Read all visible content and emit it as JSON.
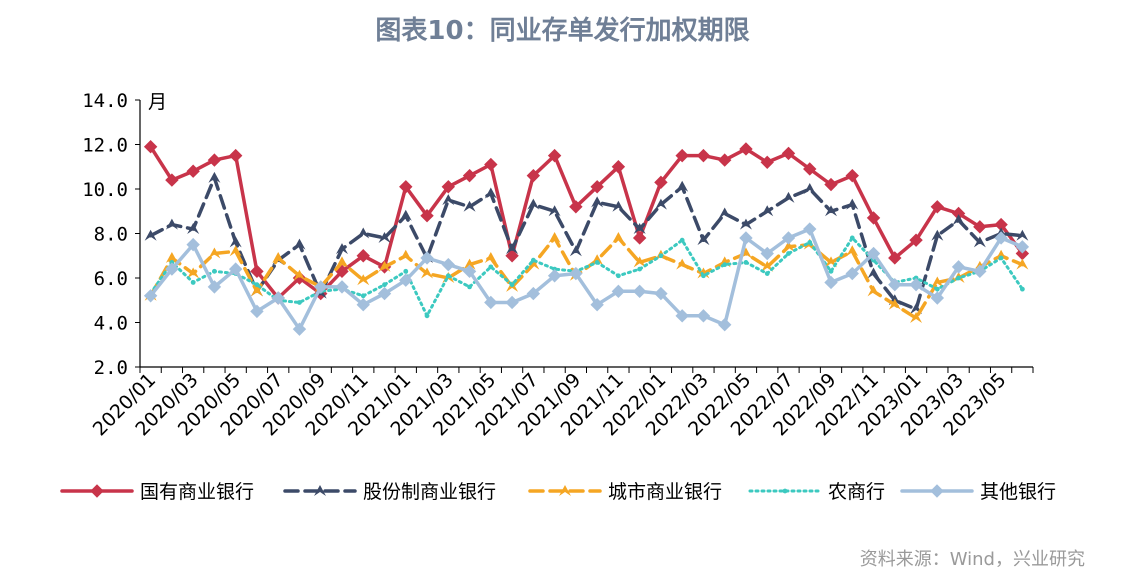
{
  "title": "图表10：同业存单发行加权期限",
  "source": "资料来源：Wind，兴业研究",
  "chart_data": {
    "type": "line",
    "unit_label": "月",
    "ylim": [
      2.0,
      14.0
    ],
    "y_ticks": [
      "2.0",
      "4.0",
      "6.0",
      "8.0",
      "10.0",
      "12.0",
      "14.0"
    ],
    "y_tick_values": [
      2,
      4,
      6,
      8,
      10,
      12,
      14
    ],
    "x": [
      "2020/01",
      "2020/02",
      "2020/03",
      "2020/04",
      "2020/05",
      "2020/06",
      "2020/07",
      "2020/08",
      "2020/09",
      "2020/10",
      "2020/11",
      "2020/12",
      "2021/01",
      "2021/02",
      "2021/03",
      "2021/04",
      "2021/05",
      "2021/06",
      "2021/07",
      "2021/08",
      "2021/09",
      "2021/10",
      "2021/11",
      "2021/12",
      "2022/01",
      "2022/02",
      "2022/03",
      "2022/04",
      "2022/05",
      "2022/06",
      "2022/07",
      "2022/08",
      "2022/09",
      "2022/10",
      "2022/11",
      "2022/12",
      "2023/01",
      "2023/02",
      "2023/03",
      "2023/04",
      "2023/05",
      "2023/06"
    ],
    "x_tick_labels": [
      "2020/01",
      "2020/03",
      "2020/05",
      "2020/07",
      "2020/09",
      "2020/11",
      "2021/01",
      "2021/03",
      "2021/05",
      "2021/07",
      "2021/09",
      "2021/11",
      "2022/01",
      "2022/03",
      "2022/05",
      "2022/07",
      "2022/09",
      "2022/11",
      "2023/01",
      "2023/03",
      "2023/05"
    ],
    "grid": false,
    "legend_position": "bottom",
    "series": [
      {
        "name": "国有商业银行",
        "color": "#c8344a",
        "style": "solid",
        "marker": "diamond",
        "values": [
          11.9,
          10.4,
          10.8,
          11.3,
          11.5,
          6.3,
          5.1,
          6.0,
          5.3,
          6.3,
          7.0,
          6.5,
          10.1,
          8.8,
          10.1,
          10.6,
          11.1,
          7.0,
          10.6,
          11.5,
          9.2,
          10.1,
          11.0,
          7.8,
          10.3,
          11.5,
          11.5,
          11.3,
          11.8,
          11.2,
          11.6,
          10.9,
          10.2,
          10.6,
          8.7,
          6.9,
          7.7,
          9.2,
          8.9,
          8.3,
          8.4,
          7.1
        ]
      },
      {
        "name": "股份制商业银行",
        "color": "#3c4a68",
        "style": "dash",
        "marker": "arrow",
        "values": [
          7.9,
          8.4,
          8.2,
          10.5,
          7.6,
          5.4,
          6.8,
          7.5,
          5.3,
          7.3,
          8.0,
          7.8,
          8.8,
          6.9,
          9.5,
          9.2,
          9.8,
          7.3,
          9.3,
          9.0,
          7.2,
          9.4,
          9.2,
          8.2,
          9.3,
          10.1,
          7.7,
          8.9,
          8.4,
          9.0,
          9.6,
          10.0,
          9.0,
          9.3,
          6.2,
          5.0,
          4.6,
          7.9,
          8.6,
          7.6,
          8.0,
          7.9
        ]
      },
      {
        "name": "城市商业银行",
        "color": "#f5a623",
        "style": "dash",
        "marker": "arrow",
        "values": [
          5.2,
          6.9,
          6.2,
          7.1,
          7.2,
          5.4,
          6.9,
          6.1,
          5.6,
          6.7,
          5.9,
          6.5,
          7.0,
          6.2,
          6.0,
          6.6,
          6.9,
          5.6,
          6.6,
          7.8,
          6.1,
          6.8,
          7.8,
          6.7,
          7.0,
          6.6,
          6.2,
          6.7,
          7.1,
          6.5,
          7.4,
          7.5,
          6.7,
          7.2,
          5.4,
          4.8,
          4.2,
          5.8,
          6.0,
          6.5,
          7.0,
          6.6
        ]
      },
      {
        "name": "农商行",
        "color": "#3cc9c0",
        "style": "dot",
        "marker": "dot",
        "values": [
          5.3,
          6.7,
          5.8,
          6.3,
          6.2,
          5.7,
          5.0,
          4.9,
          5.4,
          5.5,
          5.2,
          5.7,
          6.3,
          4.3,
          6.1,
          5.6,
          6.5,
          5.7,
          6.8,
          6.4,
          6.3,
          6.7,
          6.1,
          6.4,
          7.0,
          7.7,
          6.1,
          6.6,
          6.7,
          6.2,
          7.1,
          7.6,
          6.3,
          7.8,
          6.8,
          5.8,
          6.0,
          5.5,
          6.0,
          6.3,
          6.9,
          5.5
        ]
      },
      {
        "name": "其他银行",
        "color": "#a3bfdc",
        "style": "solid",
        "marker": "diamond",
        "values": [
          5.2,
          6.4,
          7.5,
          5.6,
          6.4,
          4.5,
          5.1,
          3.7,
          5.6,
          5.6,
          4.8,
          5.3,
          5.9,
          6.9,
          6.6,
          6.3,
          4.9,
          4.9,
          5.3,
          6.1,
          6.2,
          4.8,
          5.4,
          5.4,
          5.3,
          4.3,
          4.3,
          3.9,
          7.8,
          7.1,
          7.8,
          8.2,
          5.8,
          6.2,
          7.1,
          5.7,
          5.7,
          5.1,
          6.5,
          6.3,
          7.8,
          7.4
        ]
      }
    ]
  }
}
